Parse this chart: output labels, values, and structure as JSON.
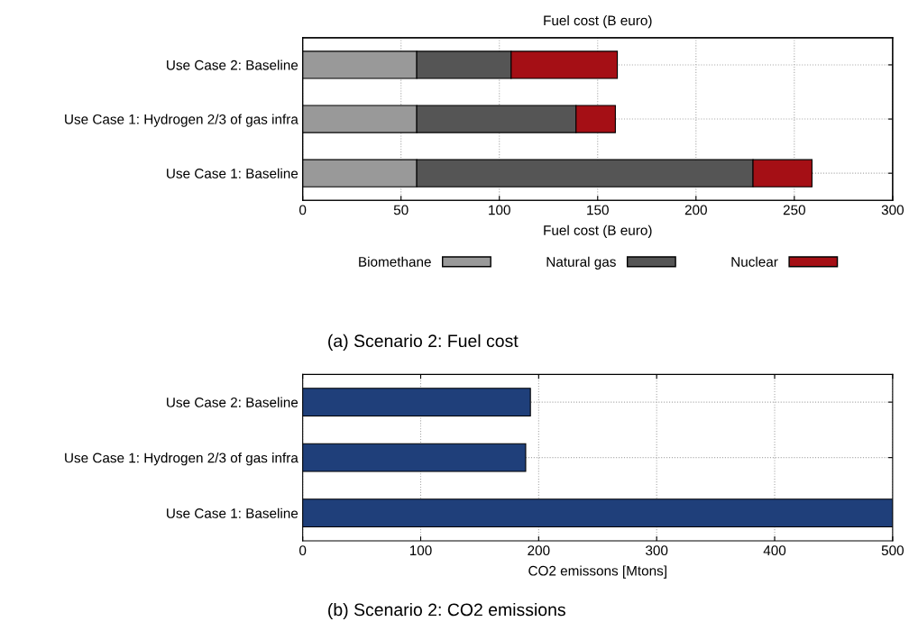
{
  "chart_data": [
    {
      "type": "bar",
      "orientation": "horizontal",
      "stacked": true,
      "x2label": "Fuel cost (B euro)",
      "xlabel": "Fuel cost (B euro)",
      "categories": [
        "Use Case 2: Baseline",
        "Use Case 1: Hydrogen 2/3 of gas infra",
        "Use Case 1: Baseline"
      ],
      "series": [
        {
          "name": "Biomethane",
          "color": "#999999",
          "values": [
            58,
            58,
            58
          ]
        },
        {
          "name": "Natural gas",
          "color": "#555555",
          "values": [
            48,
            81,
            171
          ]
        },
        {
          "name": "Nuclear",
          "color": "#a50f15",
          "values": [
            54,
            20,
            30
          ]
        }
      ],
      "xlim": [
        0,
        300
      ],
      "xticks": [
        0,
        50,
        100,
        150,
        200,
        250,
        300
      ],
      "grid": true,
      "legend": "bottom",
      "annotations": [
        "(a) Scenario 2: Fuel cost"
      ]
    },
    {
      "type": "bar",
      "orientation": "horizontal",
      "xlabel": "CO2 emissons [Mtons]",
      "categories": [
        "Use Case 2: Baseline",
        "Use Case 1: Hydrogen 2/3 of gas infra",
        "Use Case 1: Baseline"
      ],
      "series": [
        {
          "color": "#1f3f7a",
          "values": [
            193,
            189,
            500
          ]
        }
      ],
      "xlim": [
        0,
        500
      ],
      "xticks": [
        0,
        100,
        200,
        300,
        400,
        500
      ],
      "grid": true,
      "annotations": [
        "(b) Scenario 2: CO2 emissions"
      ]
    }
  ]
}
